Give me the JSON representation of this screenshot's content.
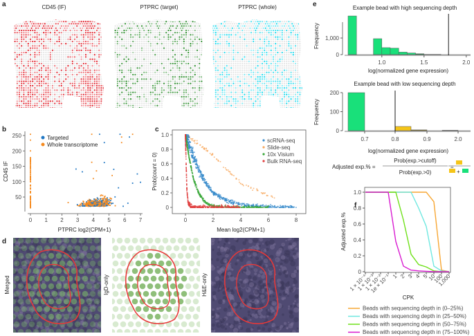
{
  "panels": {
    "a": "a",
    "b": "b",
    "c": "c",
    "d": "d",
    "e": "e",
    "f": "f"
  },
  "panel_a": {
    "titles": [
      "CD45 (IF)",
      "PTPRC (target)",
      "PTPRC (whole)"
    ],
    "colors": [
      "#e0202a",
      "#2a8a2a",
      "#19d8ec"
    ]
  },
  "panel_d": {
    "labels": [
      "Merged",
      "IgD-only",
      "H&E-only"
    ]
  },
  "formula": {
    "lhs": "Adjusted exp.% =",
    "numerator": "Prob(exp.>cutoff)",
    "denominator": "Prob(exp.>0)",
    "equals": "=",
    "plus": "+",
    "colors": {
      "above": "#f5c518",
      "below": "#19e07a"
    }
  },
  "chart_data": [
    {
      "id": "b",
      "type": "scatter",
      "xlabel": "PTPRC log2(CPM+1)",
      "ylabel": "CD45 IF",
      "xlim": [
        0,
        7
      ],
      "ylim": [
        15,
        255
      ],
      "xticks": [
        "0",
        "1",
        "2",
        "3",
        "4",
        "5",
        "6",
        "7"
      ],
      "yticks": [
        "50",
        "100",
        "150",
        "200",
        "250"
      ],
      "legend": "top-left",
      "series": [
        {
          "name": "Targeted",
          "color": "#1f77c4",
          "points": [
            [
              4.4,
              254
            ],
            [
              5.7,
              254
            ],
            [
              6.3,
              245
            ],
            [
              4.7,
              227
            ],
            [
              4.7,
              162
            ],
            [
              2.9,
              141
            ],
            [
              3.3,
              132
            ],
            [
              5.3,
              140
            ],
            [
              6.8,
              125
            ],
            [
              7.0,
              98
            ],
            [
              6.5,
              95
            ],
            [
              5.6,
              80
            ],
            [
              5.9,
              20
            ],
            [
              6.2,
              30
            ],
            [
              3.8,
              40
            ]
          ]
        },
        {
          "name": "Whole transcriptome",
          "color": "#f58a1f",
          "points": [
            [
              0,
              254
            ],
            [
              0,
              235
            ],
            [
              0,
              200
            ],
            [
              0,
              175
            ],
            [
              0,
              100
            ],
            [
              0,
              50
            ],
            [
              0,
              15
            ],
            [
              3.9,
              254
            ],
            [
              6.5,
              254
            ],
            [
              5.8,
              245
            ],
            [
              5.8,
              227
            ],
            [
              3.9,
              163
            ],
            [
              4.2,
              135
            ],
            [
              2.4,
              32
            ],
            [
              4.0,
              110
            ],
            [
              5.2,
              120
            ],
            [
              4.6,
              55
            ],
            [
              3.5,
              25
            ]
          ]
        }
      ]
    },
    {
      "id": "c",
      "type": "scatter",
      "xlabel": "Mean log2(CPM+1)",
      "ylabel": "Prob(count = 0)",
      "xlim": [
        0,
        8
      ],
      "ylim": [
        0,
        1
      ],
      "xticks": [
        "0",
        "2",
        "4",
        "6",
        "8"
      ],
      "yticks": [
        "0",
        "0.2",
        "0.4",
        "0.6",
        "0.8",
        "1.0"
      ],
      "legend": "top-right",
      "series": [
        {
          "name": "scRNA-seq",
          "color": "#3a8ccc",
          "curve": [
            [
              0,
              1
            ],
            [
              0.5,
              0.75
            ],
            [
              1,
              0.5
            ],
            [
              1.5,
              0.33
            ],
            [
              2,
              0.2
            ],
            [
              3,
              0.09
            ],
            [
              4,
              0.04
            ],
            [
              5,
              0.02
            ],
            [
              6,
              0.01
            ],
            [
              8,
              0
            ]
          ]
        },
        {
          "name": "Slide-seq",
          "color": "#f7a65a",
          "curve": [
            [
              0,
              1
            ],
            [
              1,
              0.87
            ],
            [
              2,
              0.72
            ],
            [
              3,
              0.52
            ],
            [
              4,
              0.33
            ],
            [
              4.6,
              0.28
            ],
            [
              6.6,
              0.12
            ]
          ]
        },
        {
          "name": "10x Visium",
          "color": "#3aa83a",
          "curve": [
            [
              0,
              1
            ],
            [
              0.3,
              0.65
            ],
            [
              0.6,
              0.38
            ],
            [
              1,
              0.18
            ],
            [
              1.5,
              0.06
            ],
            [
              2,
              0.02
            ],
            [
              3,
              0
            ],
            [
              6,
              0
            ]
          ]
        },
        {
          "name": "Bulk RNA-seq",
          "color": "#e04040",
          "curve": [
            [
              0,
              1
            ],
            [
              0.05,
              0.6
            ],
            [
              0.1,
              0.25
            ],
            [
              0.2,
              0.05
            ],
            [
              0.5,
              0
            ],
            [
              4,
              0
            ]
          ]
        }
      ]
    },
    {
      "id": "e1",
      "type": "bar",
      "title": "Example bead with high sequencing depth",
      "xlabel": "log(normalized gene expression)",
      "ylabel": "Frequency",
      "xticks": [
        "1.0",
        "1.5",
        "2.0"
      ],
      "yticks": [
        "0",
        "1,000"
      ],
      "cutoff": 1.79,
      "bins": [
        [
          0.6,
          0.7,
          2330
        ],
        [
          0.9,
          1.0,
          960
        ],
        [
          1.0,
          1.1,
          420
        ],
        [
          1.1,
          1.2,
          390
        ],
        [
          1.2,
          1.3,
          150
        ],
        [
          1.3,
          1.4,
          100
        ],
        [
          1.4,
          1.5,
          50
        ],
        [
          1.5,
          1.7,
          15
        ]
      ]
    },
    {
      "id": "e2",
      "type": "bar",
      "title": "Example bead with low sequencing depth",
      "xlabel": "log(normalized gene expression)",
      "ylabel": "Frequency",
      "xticks": [
        "0.7",
        "0.8",
        "0.9",
        "2.0"
      ],
      "yticks": [
        "0",
        "100",
        "200"
      ],
      "cutoff_label": "0.8",
      "bins": [
        {
          "from": "0.65",
          "to": "0.7",
          "count": 200,
          "color": "#19e07a"
        },
        {
          "from": "0.8",
          "to": "0.85",
          "count": 22,
          "color": "#f5c518"
        },
        {
          "from": "0.85",
          "to": "0.9",
          "count": 4,
          "color": "#8a7a2a"
        },
        {
          "from": "1.95",
          "to": "2.0",
          "count": 2,
          "color": "#333333"
        }
      ]
    },
    {
      "id": "f",
      "type": "line",
      "xlabel": "CPK",
      "ylabel": "Adjusted exp.%",
      "categories": [
        "1 × 10⁻⁴",
        "1 × 10⁻³",
        "1 × 10⁻²",
        "1e × 10⁻¹",
        "1",
        "2",
        "3",
        "4",
        "5",
        "10",
        "100",
        "1,000"
      ],
      "yticks": [
        "0",
        "0.2",
        "0.4",
        "0.6",
        "0.8",
        "1.0"
      ],
      "ylim": [
        0,
        1
      ],
      "series": [
        {
          "name": "Beads with sequencing depth in (0–25%)",
          "color": "#f7a632",
          "values": [
            1,
            1,
            1,
            1,
            1,
            1,
            1,
            1,
            1,
            0.88,
            0.02,
            0
          ]
        },
        {
          "name": "Beads with sequencing depth in (25–50%)",
          "color": "#6ee8e0",
          "values": [
            1,
            1,
            1,
            1,
            1,
            1,
            1,
            0.8,
            0.57,
            0.07,
            0.01,
            0
          ]
        },
        {
          "name": "Beads with sequencing depth in (50–75%)",
          "color": "#6ee018",
          "values": [
            1,
            1,
            1,
            1,
            1,
            0.65,
            0.22,
            0.09,
            0.06,
            0.01,
            0,
            0
          ]
        },
        {
          "name": "Beads with sequencing depth in (75–100%)",
          "color": "#d81ad0",
          "values": [
            1,
            1,
            1,
            1,
            0.38,
            0.07,
            0.02,
            0.01,
            0.005,
            0,
            0,
            0
          ]
        }
      ]
    }
  ]
}
